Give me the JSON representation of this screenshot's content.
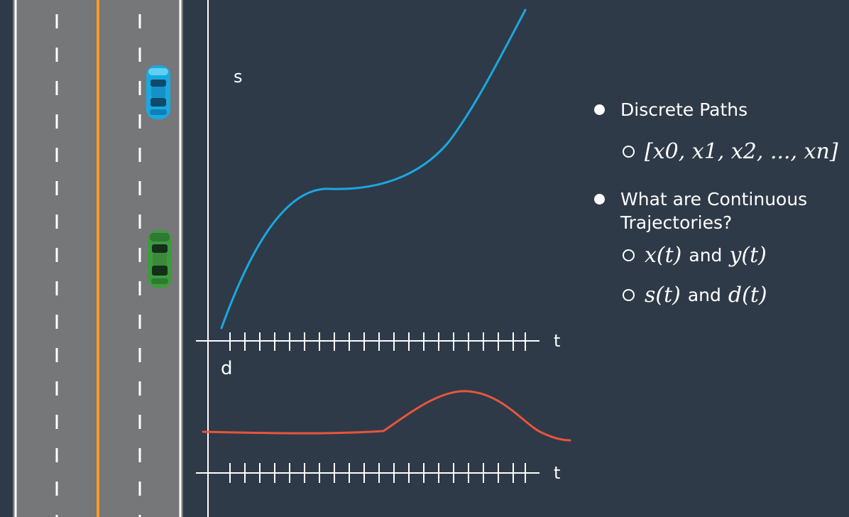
{
  "diagram": {
    "s_label": "s",
    "d_label": "d",
    "t_label_top": "t",
    "t_label_bottom": "t",
    "colors": {
      "background": "#2e3a48",
      "road": "#76777a",
      "road_dark": "#6e7073",
      "center_line": "#f59a25",
      "s_curve": "#1aa8e0",
      "d_curve": "#e8553d",
      "blue_car": "#1aa8e0",
      "green_car": "#3f9a3f"
    },
    "icons": [
      "blue-car-icon",
      "green-car-icon"
    ]
  },
  "bullets": {
    "item1": "Discrete Paths",
    "item1_sub": "[x0, x1, x2, ..., xn]",
    "item2": "What are Continuous Trajectories?",
    "item2_sub1_a": "x(t)",
    "item2_sub1_and": "and",
    "item2_sub1_b": "y(t)",
    "item2_sub2_a": "s(t)",
    "item2_sub2_and": "and",
    "item2_sub2_b": "d(t)"
  }
}
